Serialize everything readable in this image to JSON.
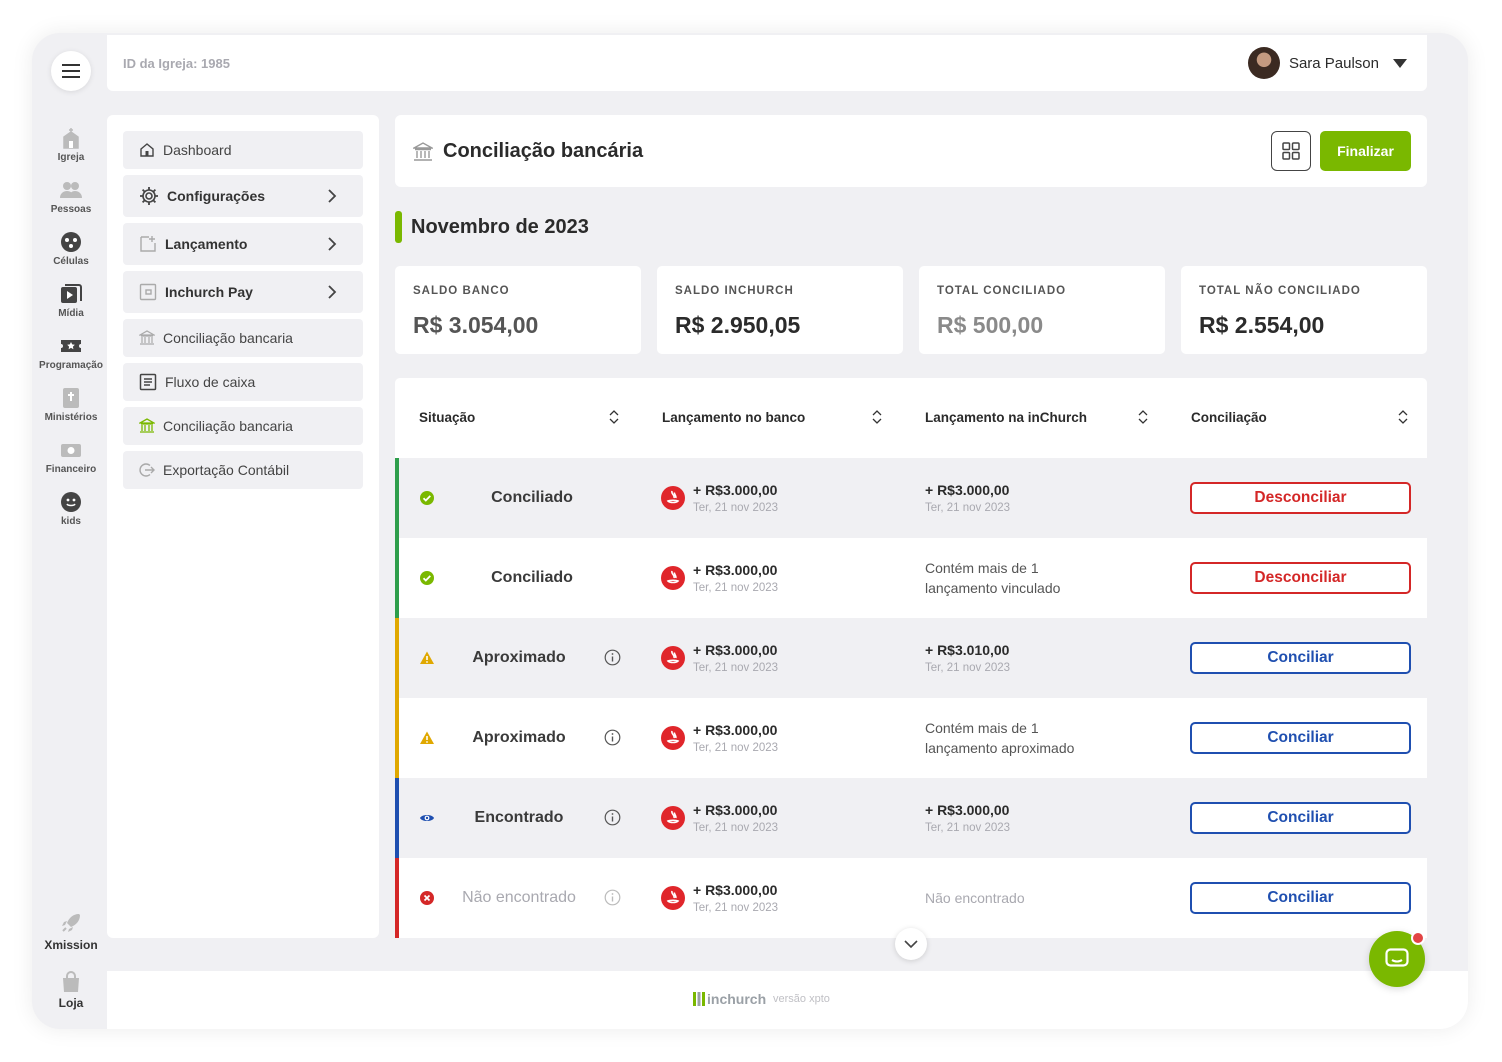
{
  "topbar": {
    "church_id": "ID da Igreja: 1985",
    "user_name": "Sara Paulson"
  },
  "rail": {
    "items": [
      "Igreja",
      "Pessoas",
      "Células",
      "Mídia",
      "Programação",
      "Ministérios",
      "Financeiro",
      "kids"
    ],
    "bottom": [
      "Xmission",
      "Loja"
    ]
  },
  "subnav": {
    "items": [
      {
        "label": "Dashboard",
        "icon": "home-icon"
      },
      {
        "label": "Configurações",
        "icon": "gear-icon"
      },
      {
        "label": "Lançamento",
        "icon": "add-document-icon"
      },
      {
        "label": "Inchurch Pay",
        "icon": "wallet-icon"
      },
      {
        "label": "Conciliação bancaria",
        "icon": "bank-icon"
      },
      {
        "label": "Fluxo de caixa",
        "icon": "list-icon"
      },
      {
        "label": "Conciliação bancaria",
        "icon": "bank-icon"
      },
      {
        "label": "Exportação Contábil",
        "icon": "export-icon"
      }
    ]
  },
  "header": {
    "title": "Conciliação bancária",
    "finalize_label": "Finalizar"
  },
  "period": {
    "label": "Novembro de 2023"
  },
  "kpis": [
    {
      "label": "SALDO BANCO",
      "value": "R$ 3.054,00",
      "color": "#555555"
    },
    {
      "label": "SALDO INCHURCH",
      "value": "R$ 2.950,05",
      "color": "#2b2b2b"
    },
    {
      "label": "TOTAL CONCILIADO",
      "value": "R$ 500,00",
      "color": "#8a8a8a"
    },
    {
      "label": "TOTAL NÃO CONCILIADO",
      "value": "R$ 2.554,00",
      "color": "#2b2b2b"
    }
  ],
  "table": {
    "headers": [
      "Situação",
      "Lançamento no banco",
      "Lançamento na inChurch",
      "Conciliação"
    ],
    "rows": [
      {
        "status": "Conciliado",
        "bank_amount": "+ R$3.000,00",
        "bank_date": "Ter, 21 nov 2023",
        "inchurch_amount": "+ R$3.000,00",
        "inchurch_date": "Ter, 21 nov 2023",
        "action": "Desconciliar"
      },
      {
        "status": "Conciliado",
        "bank_amount": "+ R$3.000,00",
        "bank_date": "Ter, 21 nov 2023",
        "inchurch_note_1": "Contém mais de 1",
        "inchurch_note_2": "lançamento vinculado",
        "action": "Desconciliar"
      },
      {
        "status": "Aproximado",
        "bank_amount": "+ R$3.000,00",
        "bank_date": "Ter, 21 nov 2023",
        "inchurch_amount": "+ R$3.010,00",
        "inchurch_date": "Ter, 21 nov 2023",
        "action": "Conciliar"
      },
      {
        "status": "Aproximado",
        "bank_amount": "+ R$3.000,00",
        "bank_date": "Ter, 21 nov 2023",
        "inchurch_note_1": "Contém mais de 1",
        "inchurch_note_2": "lançamento aproximado",
        "action": "Conciliar"
      },
      {
        "status": "Encontrado",
        "bank_amount": "+ R$3.000,00",
        "bank_date": "Ter, 21 nov 2023",
        "inchurch_amount": "+ R$3.000,00",
        "inchurch_date": "Ter, 21 nov 2023",
        "action": "Conciliar"
      },
      {
        "status": "Não encontrado",
        "bank_amount": "+ R$3.000,00",
        "bank_date": "Ter, 21 nov 2023",
        "inchurch_note_1": "Não encontrado",
        "action": "Conciliar"
      }
    ]
  },
  "footer": {
    "brand": "inchurch",
    "version": "versão xpto"
  },
  "colors": {
    "brand_green": "#7ab800",
    "danger": "#d42727",
    "primary_blue": "#1f4fb0",
    "warning": "#e0a800"
  }
}
